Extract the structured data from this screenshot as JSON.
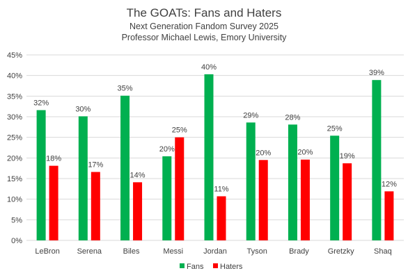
{
  "chart_data": {
    "type": "bar",
    "title": "The GOATs: Fans and Haters",
    "subtitle": [
      "Next Generation Fandom Survey 2025",
      "Professor Michael Lewis, Emory University"
    ],
    "categories": [
      "LeBron",
      "Serena",
      "Biles",
      "Messi",
      "Jordan",
      "Tyson",
      "Brady",
      "Gretzky",
      "Shaq"
    ],
    "series": [
      {
        "name": "Fans",
        "color": "#00b050",
        "values": [
          31.6,
          30.1,
          35.1,
          20.4,
          40.3,
          28.6,
          28.1,
          25.4,
          38.9
        ],
        "labels": [
          "32%",
          "30%",
          "35%",
          "20%",
          "40%",
          "29%",
          "28%",
          "25%",
          "39%"
        ]
      },
      {
        "name": "Haters",
        "color": "#ff0000",
        "values": [
          18.1,
          16.6,
          14.1,
          25.0,
          10.7,
          19.5,
          19.6,
          18.7,
          11.9
        ],
        "labels": [
          "18%",
          "17%",
          "14%",
          "25%",
          "11%",
          "20%",
          "20%",
          "19%",
          "12%"
        ]
      }
    ],
    "ylim": [
      0,
      45
    ],
    "yticks": [
      "0%",
      "5%",
      "10%",
      "15%",
      "20%",
      "25%",
      "30%",
      "35%",
      "40%",
      "45%"
    ],
    "grid": true,
    "legend_position": "bottom"
  }
}
